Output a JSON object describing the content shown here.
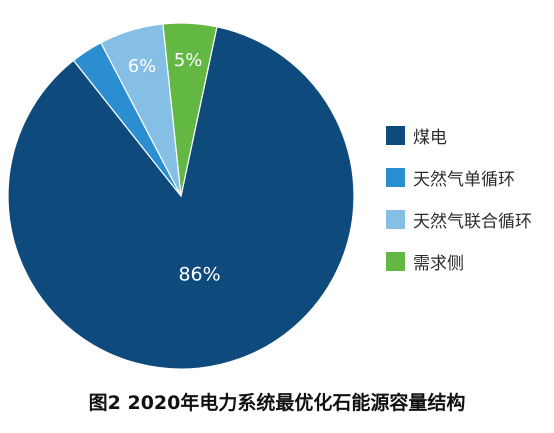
{
  "chart_data": {
    "type": "pie",
    "title": "图2 2020年电力系统最优化石能源容量结构",
    "legend_position": "right",
    "slices": [
      {
        "name": "煤电",
        "value": 86,
        "label": "86%",
        "color": "#0e4a7c"
      },
      {
        "name": "天然气单循环",
        "value": 3,
        "label": "",
        "color": "#2a8ed1"
      },
      {
        "name": "天然气联合循环",
        "value": 6,
        "label": "6%",
        "color": "#86bfe6"
      },
      {
        "name": "需求侧",
        "value": 5,
        "label": "5%",
        "color": "#63b844"
      }
    ]
  }
}
